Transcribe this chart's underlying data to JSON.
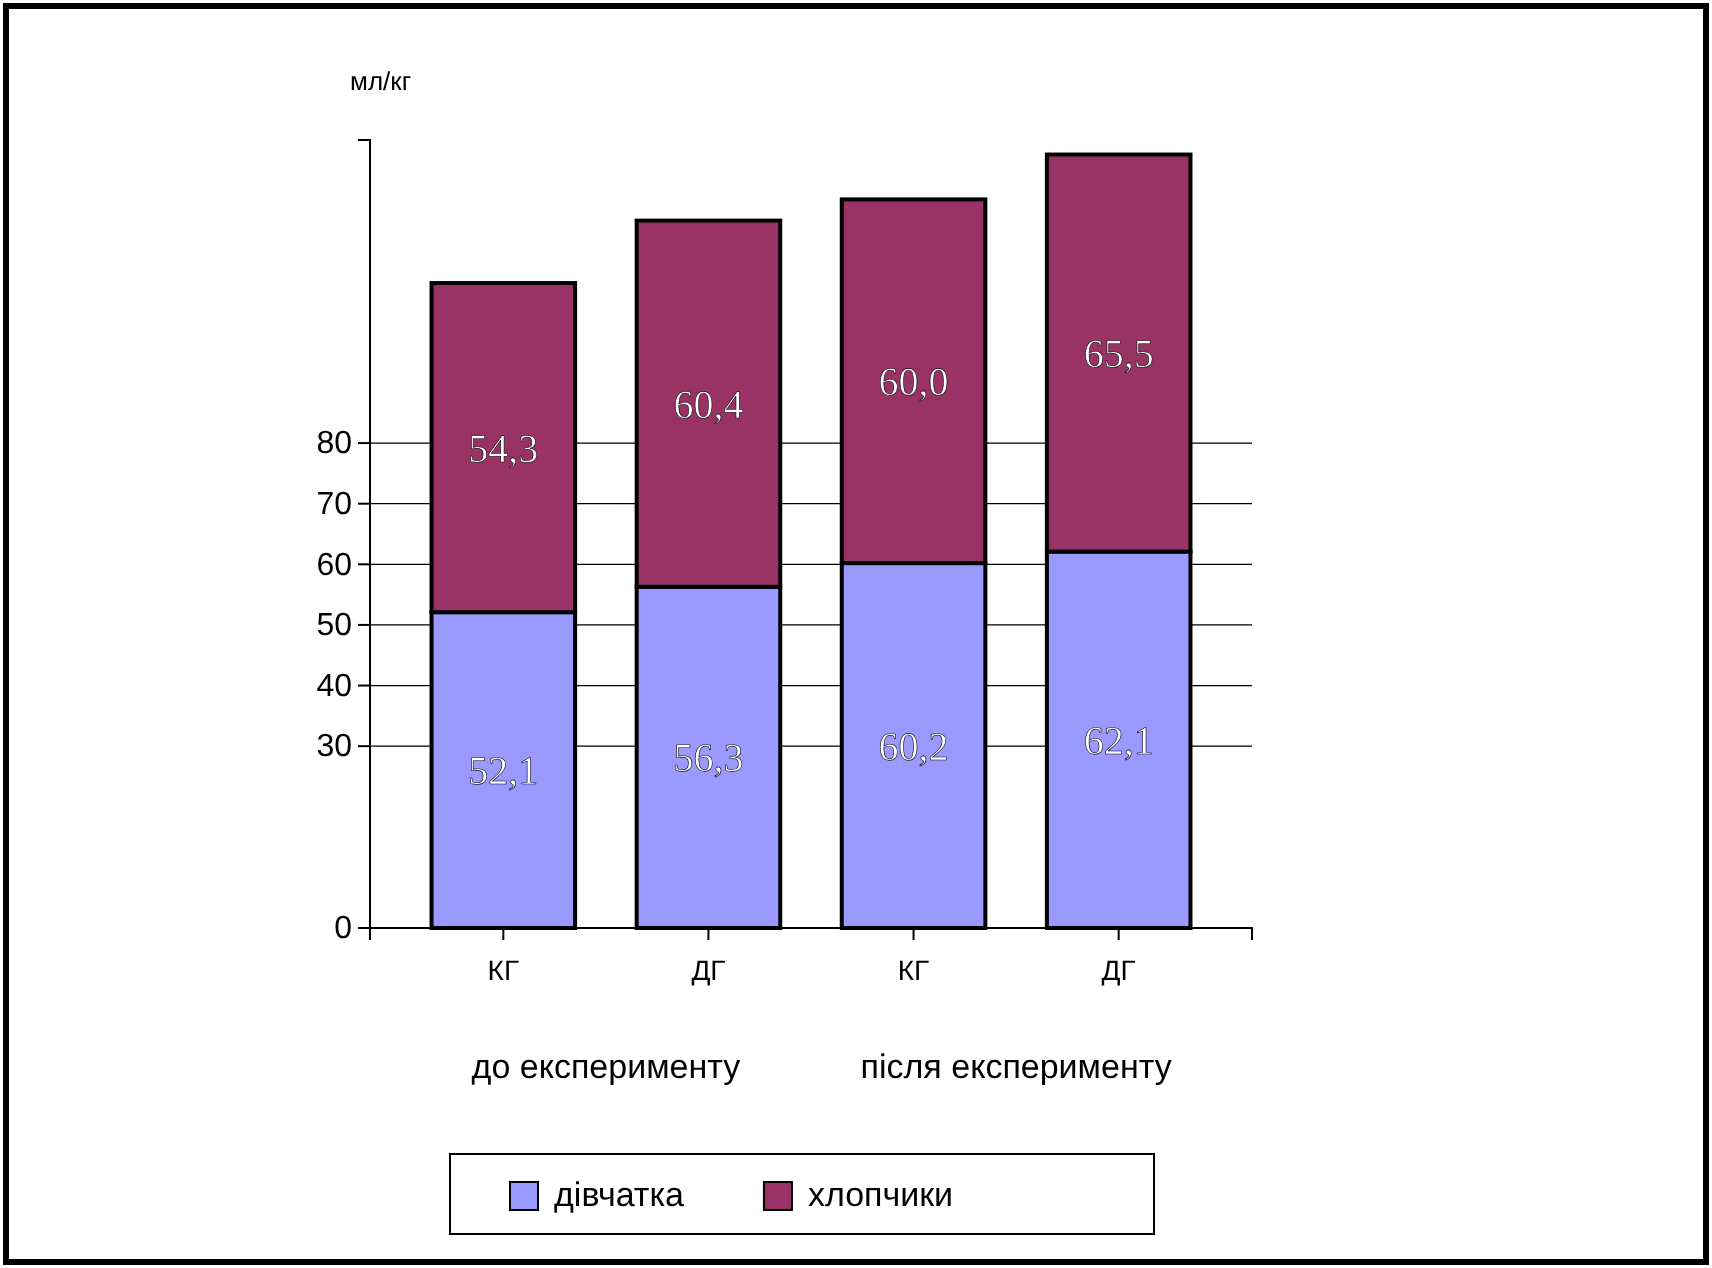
{
  "chart_data": {
    "type": "bar",
    "stacked": true,
    "ylabel": "мл/кг",
    "categories": [
      "КГ",
      "ДГ",
      "КГ",
      "ДГ"
    ],
    "series": [
      {
        "name": "дівчатка",
        "color": "#9999ff",
        "values": [
          52.1,
          56.3,
          60.2,
          62.1
        ]
      },
      {
        "name": "хлопчики",
        "color": "#993366",
        "values": [
          54.3,
          60.4,
          60.0,
          65.5
        ]
      }
    ],
    "value_labels": [
      [
        "52,1",
        "56,3",
        "60,2",
        "62,1"
      ],
      [
        "54,3",
        "60,4",
        "60,0",
        "65,5"
      ]
    ],
    "ylim": [
      0,
      130
    ],
    "yticks": [
      0,
      30,
      40,
      50,
      60,
      70,
      80
    ],
    "grid": "y",
    "legend": "bottom",
    "annotations": [
      "до експерименту",
      "після експерименту"
    ]
  }
}
